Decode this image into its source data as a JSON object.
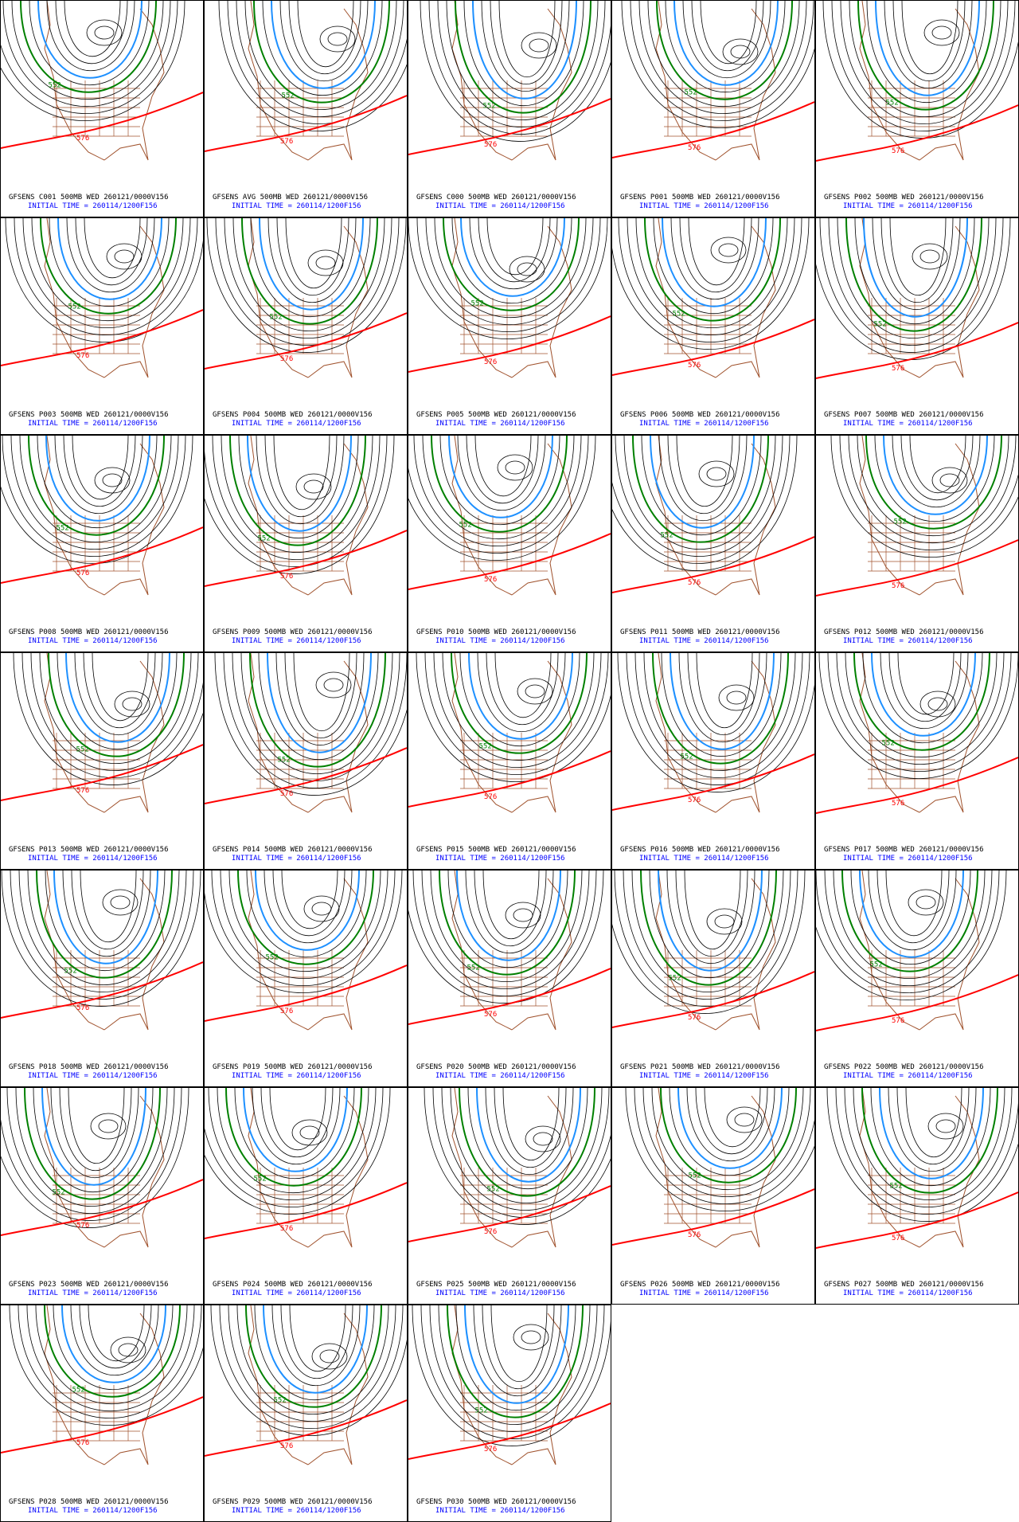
{
  "panels": [
    {
      "title": "GFSENS C001 500MB WED 260121/0000V156",
      "initial": "INITIAL TIME = 260114/1200F156",
      "contours": [
        "552",
        "576"
      ]
    },
    {
      "title": "GFSENS AVG 500MB WED 260121/0000V156",
      "initial": "INITIAL TIME = 260114/1200F156",
      "contours": [
        "552",
        "576"
      ]
    },
    {
      "title": "GFSENS C000 500MB WED 260121/0000V156",
      "initial": "INITIAL TIME = 260114/1200F156",
      "contours": [
        "552",
        "576"
      ]
    },
    {
      "title": "GFSENS P001 500MB WED 260121/0000V156",
      "initial": "INITIAL TIME = 260114/1200F156",
      "contours": [
        "552",
        "576"
      ]
    },
    {
      "title": "GFSENS P002 500MB WED 260121/0000V156",
      "initial": "INITIAL TIME = 260114/1200F156",
      "contours": [
        "552",
        "576"
      ]
    },
    {
      "title": "GFSENS P003 500MB WED 260121/0000V156",
      "initial": "INITIAL TIME = 260114/1200F156",
      "contours": [
        "552",
        "576"
      ]
    },
    {
      "title": "GFSENS P004 500MB WED 260121/0000V156",
      "initial": "INITIAL TIME = 260114/1200F156",
      "contours": [
        "552",
        "576"
      ]
    },
    {
      "title": "GFSENS P005 500MB WED 260121/0000V156",
      "initial": "INITIAL TIME = 260114/1200F156",
      "contours": [
        "552",
        "576"
      ]
    },
    {
      "title": "GFSENS P006 500MB WED 260121/0000V156",
      "initial": "INITIAL TIME = 260114/1200F156",
      "contours": [
        "552",
        "576"
      ]
    },
    {
      "title": "GFSENS P007 500MB WED 260121/0000V156",
      "initial": "INITIAL TIME = 260114/1200F156",
      "contours": [
        "552",
        "576"
      ]
    },
    {
      "title": "GFSENS P008 500MB WED 260121/0000V156",
      "initial": "INITIAL TIME = 260114/1200F156",
      "contours": [
        "552",
        "576"
      ]
    },
    {
      "title": "GFSENS P009 500MB WED 260121/0000V156",
      "initial": "INITIAL TIME = 260114/1200F156",
      "contours": [
        "552",
        "576"
      ]
    },
    {
      "title": "GFSENS P010 500MB WED 260121/0000V156",
      "initial": "INITIAL TIME = 260114/1200F156",
      "contours": [
        "552",
        "576"
      ]
    },
    {
      "title": "GFSENS P011 500MB WED 260121/0000V156",
      "initial": "INITIAL TIME = 260114/1200F156",
      "contours": [
        "552",
        "576"
      ]
    },
    {
      "title": "GFSENS P012 500MB WED 260121/0000V156",
      "initial": "INITIAL TIME = 260114/1200F156",
      "contours": [
        "552",
        "576"
      ]
    },
    {
      "title": "GFSENS P013 500MB WED 260121/0000V156",
      "initial": "INITIAL TIME = 260114/1200F156",
      "contours": [
        "552",
        "576"
      ]
    },
    {
      "title": "GFSENS P014 500MB WED 260121/0000V156",
      "initial": "INITIAL TIME = 260114/1200F156",
      "contours": [
        "552",
        "576"
      ]
    },
    {
      "title": "GFSENS P015 500MB WED 260121/0000V156",
      "initial": "INITIAL TIME = 260114/1200F156",
      "contours": [
        "552",
        "576"
      ]
    },
    {
      "title": "GFSENS P016 500MB WED 260121/0000V156",
      "initial": "INITIAL TIME = 260114/1200F156",
      "contours": [
        "552",
        "576"
      ]
    },
    {
      "title": "GFSENS P017 500MB WED 260121/0000V156",
      "initial": "INITIAL TIME = 260114/1200F156",
      "contours": [
        "552",
        "576"
      ]
    },
    {
      "title": "GFSENS P018 500MB WED 260121/0000V156",
      "initial": "INITIAL TIME = 260114/1200F156",
      "contours": [
        "552",
        "576"
      ]
    },
    {
      "title": "GFSENS P019 500MB WED 260121/0000V156",
      "initial": "INITIAL TIME = 260114/1200F156",
      "contours": [
        "552",
        "576"
      ]
    },
    {
      "title": "GFSENS P020 500MB WED 260121/0000V156",
      "initial": "INITIAL TIME = 260114/1200F156",
      "contours": [
        "552",
        "576"
      ]
    },
    {
      "title": "GFSENS P021 500MB WED 260121/0000V156",
      "initial": "INITIAL TIME = 260114/1200F156",
      "contours": [
        "552",
        "576"
      ]
    },
    {
      "title": "GFSENS P022 500MB WED 260121/0000V156",
      "initial": "INITIAL TIME = 260114/1200F156",
      "contours": [
        "552",
        "576"
      ]
    },
    {
      "title": "GFSENS P023 500MB WED 260121/0000V156",
      "initial": "INITIAL TIME = 260114/1200F156",
      "contours": [
        "552",
        "576"
      ]
    },
    {
      "title": "GFSENS P024 500MB WED 260121/0000V156",
      "initial": "INITIAL TIME = 260114/1200F156",
      "contours": [
        "552",
        "576"
      ]
    },
    {
      "title": "GFSENS P025 500MB WED 260121/0000V156",
      "initial": "INITIAL TIME = 260114/1200F156",
      "contours": [
        "552",
        "576"
      ]
    },
    {
      "title": "GFSENS P026 500MB WED 260121/0000V156",
      "initial": "INITIAL TIME = 260114/1200F156",
      "contours": [
        "552",
        "576"
      ]
    },
    {
      "title": "GFSENS P027 500MB WED 260121/0000V156",
      "initial": "INITIAL TIME = 260114/1200F156",
      "contours": [
        "552",
        "576"
      ]
    },
    {
      "title": "GFSENS P028 500MB WED 260121/0000V156",
      "initial": "INITIAL TIME = 260114/1200F156",
      "contours": [
        "552",
        "576"
      ]
    },
    {
      "title": "GFSENS P029 500MB WED 260121/0000V156",
      "initial": "INITIAL TIME = 260114/1200F156",
      "contours": [
        "552",
        "576"
      ]
    },
    {
      "title": "GFSENS P030 500MB WED 260121/0000V156",
      "initial": "INITIAL TIME = 260114/1200F156",
      "contours": [
        "552",
        "576"
      ]
    }
  ]
}
